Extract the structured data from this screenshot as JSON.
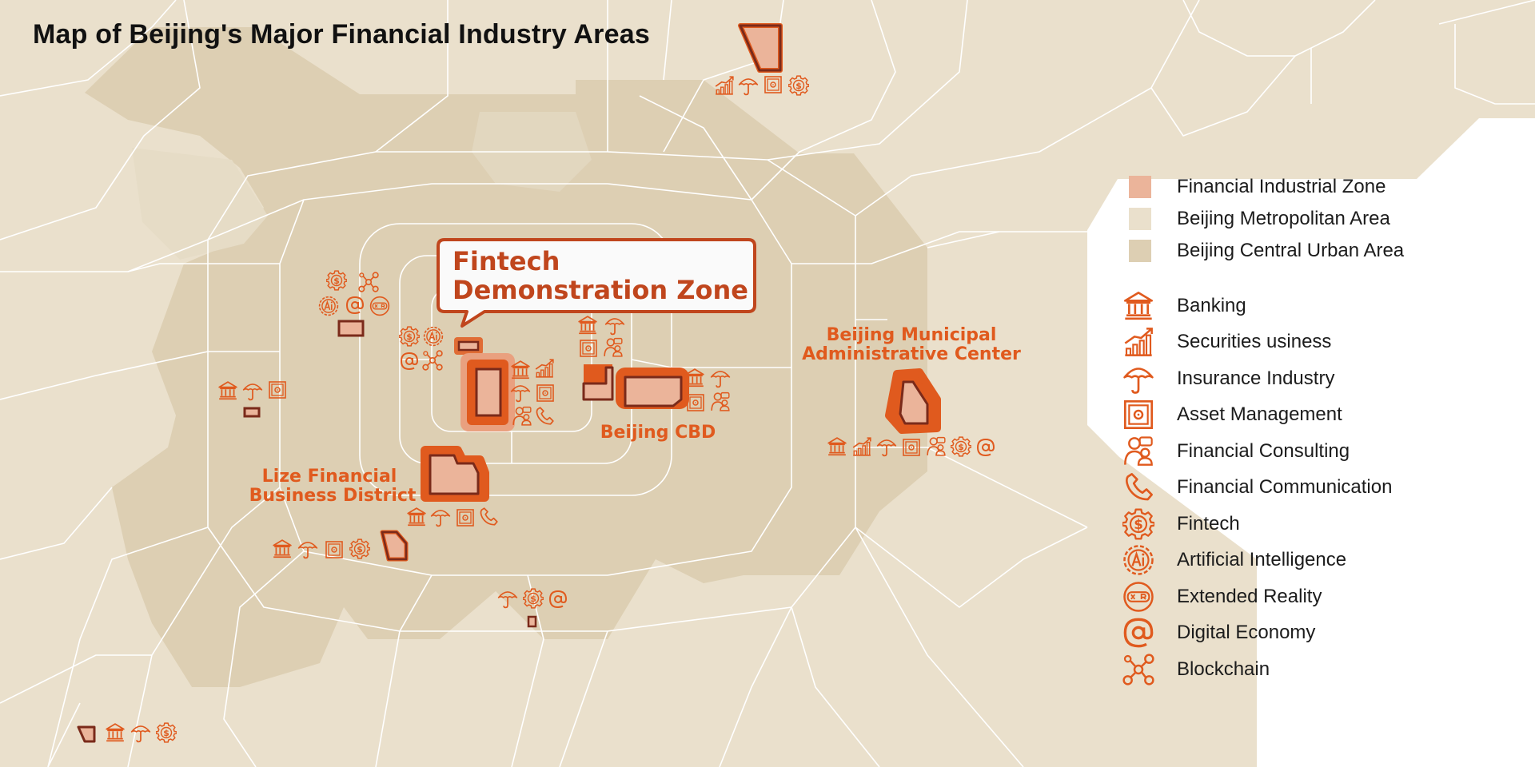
{
  "title": "Map of Beijing's Major Financial Industry Areas",
  "colors": {
    "zone_fill": "#ebb49a",
    "metro_area": "#eae0cc",
    "central_urban": "#ddcfb3",
    "zone_outline": "#7a2a1a",
    "accent": "#e05a1e",
    "roads": "#ffffff"
  },
  "callout": {
    "line1": "Fintech",
    "line2": "Demonstration Zone"
  },
  "labels": {
    "cbd": "Beijing CBD",
    "admin_line1": "Beijing Municipal",
    "admin_line2": "Administrative Center",
    "lize_line1": "Lize Financial",
    "lize_line2": "Business District"
  },
  "legend": {
    "areas": [
      {
        "label": "Financial Industrial Zone",
        "color": "#ebb49a"
      },
      {
        "label": "Beijing Metropolitan Area",
        "color": "#eae0cc"
      },
      {
        "label": "Beijing Central Urban Area",
        "color": "#ddcfb3"
      }
    ],
    "industries": [
      {
        "label": "Banking",
        "icon": "bank-icon"
      },
      {
        "label": "Securities usiness",
        "icon": "securities-icon"
      },
      {
        "label": "Insurance Industry",
        "icon": "umbrella-icon"
      },
      {
        "label": "Asset Management",
        "icon": "safe-icon"
      },
      {
        "label": "Financial Consulting",
        "icon": "consulting-icon"
      },
      {
        "label": "Financial Communication",
        "icon": "phone-icon"
      },
      {
        "label": "Fintech",
        "icon": "fintech-gear-icon"
      },
      {
        "label": "Artificial Intelligence",
        "icon": "ai-icon"
      },
      {
        "label": "Extended Reality",
        "icon": "xr-icon"
      },
      {
        "label": "Digital Economy",
        "icon": "at-icon"
      },
      {
        "label": "Blockchain",
        "icon": "blockchain-icon"
      }
    ]
  }
}
